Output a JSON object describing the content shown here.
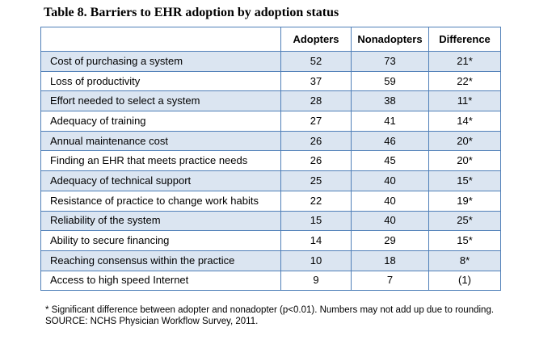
{
  "caption": "Table 8. Barriers to EHR adoption by adoption status",
  "table": {
    "headers": [
      "",
      "Adopters",
      "Nonadopters",
      "Difference"
    ],
    "rows": [
      {
        "label": "Cost of purchasing a system",
        "adopters": "52",
        "nonadopters": "73",
        "difference": "21*"
      },
      {
        "label": "Loss of productivity",
        "adopters": "37",
        "nonadopters": "59",
        "difference": "22*"
      },
      {
        "label": "Effort needed to select a system",
        "adopters": "28",
        "nonadopters": "38",
        "difference": "11*"
      },
      {
        "label": "Adequacy of training",
        "adopters": "27",
        "nonadopters": "41",
        "difference": "14*"
      },
      {
        "label": "Annual maintenance cost",
        "adopters": "26",
        "nonadopters": "46",
        "difference": "20*"
      },
      {
        "label": "Finding an EHR that meets practice needs",
        "adopters": "26",
        "nonadopters": "45",
        "difference": "20*"
      },
      {
        "label": "Adequacy of technical support",
        "adopters": "25",
        "nonadopters": "40",
        "difference": "15*"
      },
      {
        "label": "Resistance of practice to change work habits",
        "adopters": "22",
        "nonadopters": "40",
        "difference": "19*"
      },
      {
        "label": "Reliability of the system",
        "adopters": "15",
        "nonadopters": "40",
        "difference": "25*"
      },
      {
        "label": "Ability to secure financing",
        "adopters": "14",
        "nonadopters": "29",
        "difference": "15*"
      },
      {
        "label": "Reaching consensus within the practice",
        "adopters": "10",
        "nonadopters": "18",
        "difference": "8*"
      },
      {
        "label": "Access to high speed Internet",
        "adopters": "9",
        "nonadopters": "7",
        "difference": "(1)"
      }
    ]
  },
  "footnotes": {
    "significance": "* Significant difference between adopter and nonadopter (p<0.01). Numbers may not add up due to rounding.",
    "source": "SOURCE: NCHS Physician Workflow Survey, 2011."
  },
  "colors": {
    "border": "#4f7fb8",
    "shaded_row": "#dbe5f1"
  }
}
